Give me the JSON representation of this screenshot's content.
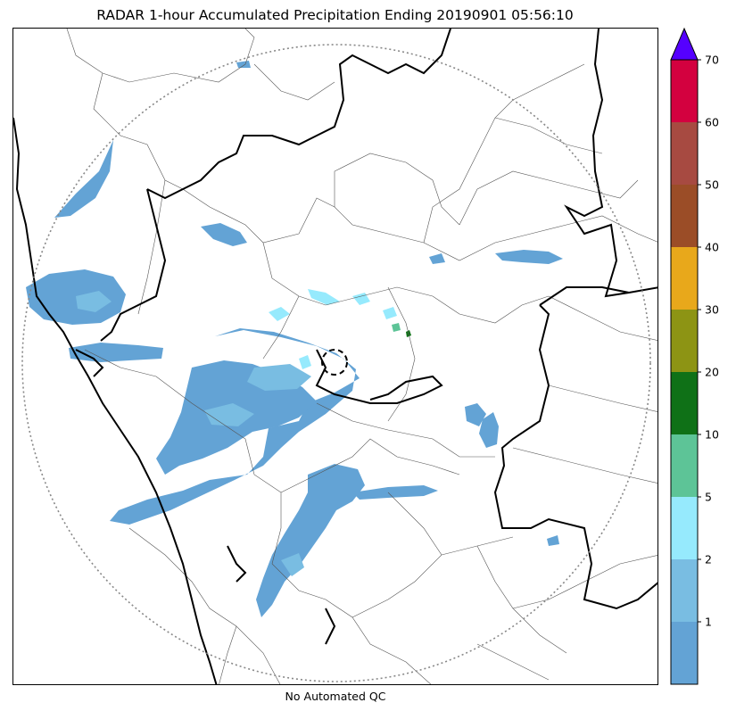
{
  "title": "RADAR 1-hour Accumulated Precipitation Ending 20190901 05:56:10",
  "footnote": "No Automated QC",
  "legend": {
    "ticks": [
      {
        "label": "1"
      },
      {
        "label": "2"
      },
      {
        "label": "5"
      },
      {
        "label": "10"
      },
      {
        "label": "20"
      },
      {
        "label": "30"
      },
      {
        "label": "40"
      },
      {
        "label": "50"
      },
      {
        "label": "60"
      },
      {
        "label": "70"
      }
    ],
    "bins": [
      {
        "from": 0,
        "to": 1,
        "color": "#63a3d5"
      },
      {
        "from": 1,
        "to": 2,
        "color": "#79bde2"
      },
      {
        "from": 2,
        "to": 5,
        "color": "#96eafd"
      },
      {
        "from": 5,
        "to": 10,
        "color": "#5dc497"
      },
      {
        "from": 10,
        "to": 20,
        "color": "#0f7117"
      },
      {
        "from": 20,
        "to": 30,
        "color": "#8d9414"
      },
      {
        "from": 30,
        "to": 40,
        "color": "#e8a81b"
      },
      {
        "from": 40,
        "to": 50,
        "color": "#9b4d27"
      },
      {
        "from": 50,
        "to": 60,
        "color": "#a74a41"
      },
      {
        "from": 60,
        "to": 70,
        "color": "#d3013f"
      }
    ],
    "overflow_color": "#5500ff"
  },
  "map": {
    "range_ring": "dotted",
    "radar_marker": "dashed-circle"
  }
}
